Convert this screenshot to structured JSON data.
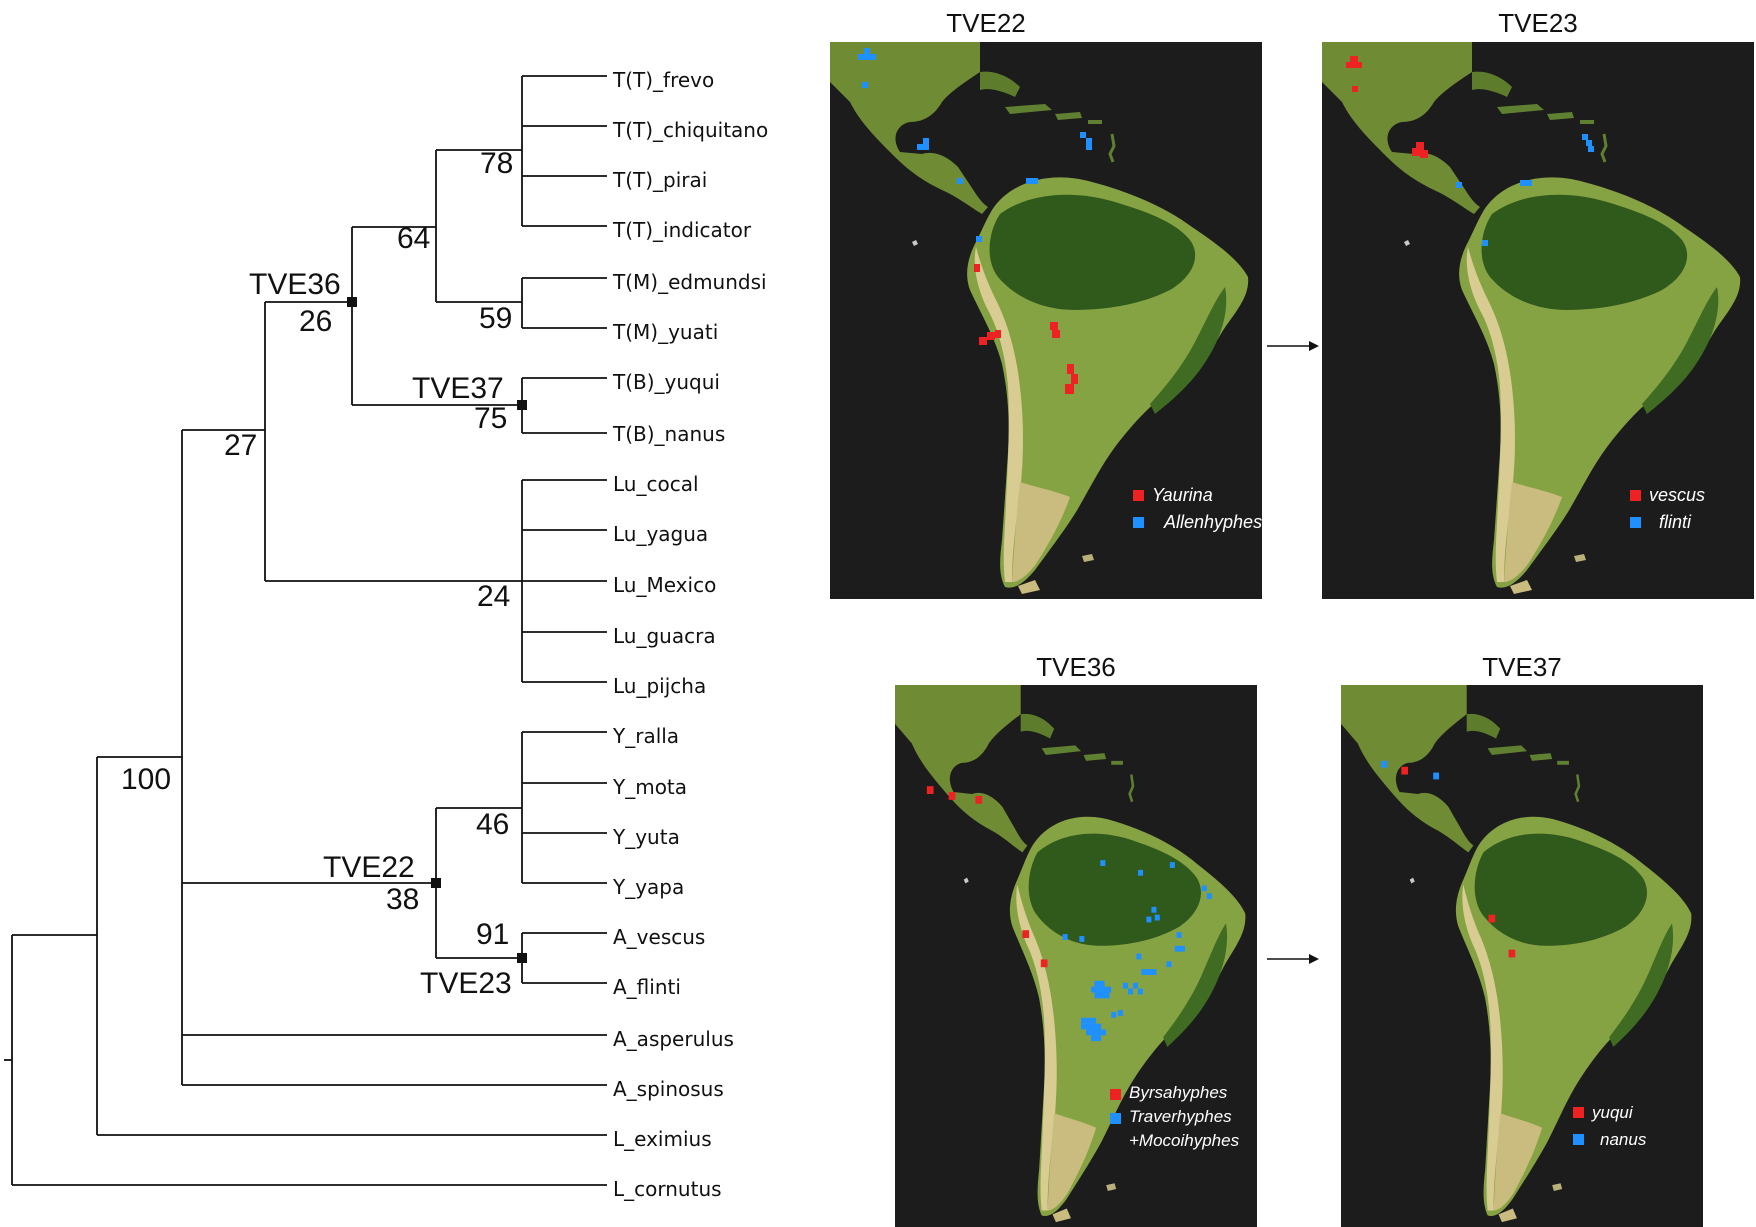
{
  "tree": {
    "tips": [
      "T(T)_frevo",
      "T(T)_chiquitano",
      "T(T)_pirai",
      "T(T)_indicator",
      "T(M)_edmundsi",
      "T(M)_yuati",
      "T(B)_yuqui",
      "T(B)_nanus",
      "Lu_cocal",
      "Lu_yagua",
      "Lu_Mexico",
      "Lu_guacra",
      "Lu_pijcha",
      "Y_ralla",
      "Y_mota",
      "Y_yuta",
      "Y_yapa",
      "A_vescus",
      "A_flinti",
      "A_asperulus",
      "A_spinosus",
      "L_eximius",
      "L_cornutus"
    ],
    "support": {
      "n78": "78",
      "n59": "59",
      "n64": "64",
      "n75": "75",
      "n26": "26",
      "n24": "24",
      "n27": "27",
      "n46": "46",
      "n91": "91",
      "n38": "38",
      "n100": "100"
    },
    "node_labels": {
      "tve36": "TVE36",
      "tve37": "TVE37",
      "tve22": "TVE22",
      "tve23": "TVE23"
    }
  },
  "maps": [
    {
      "title": "TVE22",
      "legend": [
        {
          "label": "Yaurina",
          "color": "#ee2222"
        },
        {
          "label": "Allenhyphes",
          "color": "#1e90ff"
        }
      ]
    },
    {
      "title": "TVE23",
      "legend": [
        {
          "label": "vescus",
          "color": "#ee2222"
        },
        {
          "label": "flinti",
          "color": "#1e90ff"
        }
      ]
    },
    {
      "title": "TVE36",
      "legend": [
        {
          "label": "Byrsahyphes",
          "color": "#ee2222"
        },
        {
          "label": "Traverhyphes",
          "color": "#1e90ff"
        },
        {
          "label": "+Mocoihyphes",
          "color": ""
        }
      ]
    },
    {
      "title": "TVE37",
      "legend": [
        {
          "label": "yuqui",
          "color": "#ee2222"
        },
        {
          "label": "nanus",
          "color": "#1e90ff"
        }
      ]
    }
  ],
  "colors": {
    "map_background": "#1c1c1c",
    "land": "#7a9a3a",
    "forest": "#2f5a1c",
    "desert": "#d8cc92",
    "red": "#ee2222",
    "blue": "#1e90ff"
  }
}
